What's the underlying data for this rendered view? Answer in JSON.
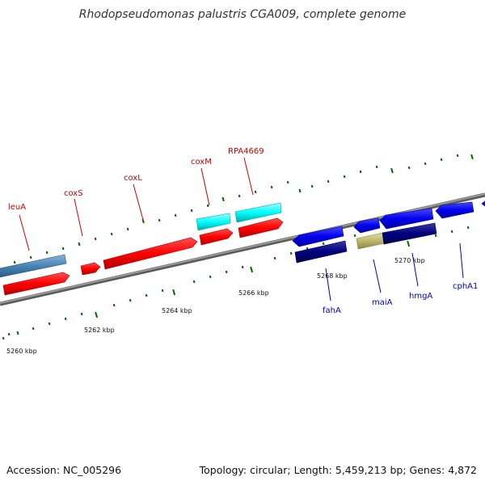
{
  "title": "Rhodopseudomonas palustris CGA009, complete genome",
  "footer": {
    "accession": "Accession: NC_005296",
    "summary": "Topology: circular; Length: 5,459,213 bp; Genes: 4,872"
  },
  "scale_labels": [
    "5260 kbp",
    "5262 kbp",
    "5264 kbp",
    "5266 kbp",
    "5268 kbp",
    "5270 kbp"
  ],
  "gene_labels": {
    "leuA": "leuA",
    "coxS": "coxS",
    "coxL": "coxL",
    "coxM": "coxM",
    "rpa4669": "RPA4669",
    "fahA": "fahA",
    "maiA": "maiA",
    "hmgA": "hmgA",
    "cphA1": "cphA1"
  },
  "colors": {
    "forward_gene": "#ff0000",
    "reverse_gene": "#0000ff",
    "forward_cds_alt": "#00ffff",
    "reverse_cds_alt": "#000080",
    "steelblue_feature": "#4682b4",
    "khaki_feature": "#bdb76b",
    "backbone": "#808080",
    "tick": "#006400",
    "forward_label": "#cc0000",
    "reverse_label": "#0000cc"
  }
}
